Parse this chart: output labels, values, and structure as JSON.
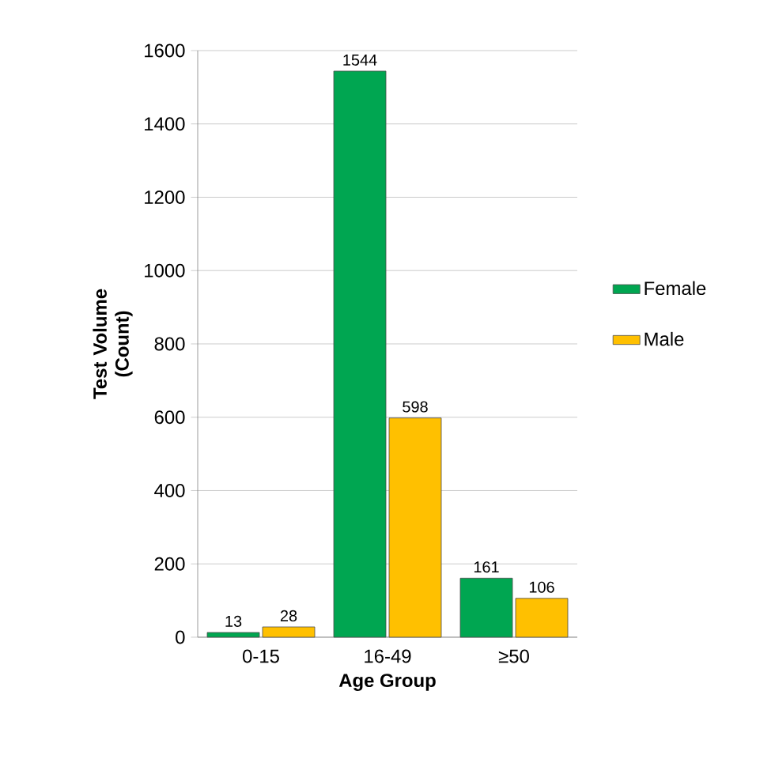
{
  "chart_data": {
    "type": "bar",
    "xlabel": "Age Group",
    "ylabel": "Test Volume (Count)",
    "categories": [
      "0-15",
      "16-49",
      "≥50"
    ],
    "series": [
      {
        "name": "Female",
        "color": "#00a651",
        "values": [
          13,
          1544,
          161
        ]
      },
      {
        "name": "Male",
        "color": "#ffc000",
        "values": [
          28,
          598,
          106
        ]
      }
    ],
    "ylim": [
      0,
      1600
    ],
    "yticks": [
      0,
      200,
      400,
      600,
      800,
      1000,
      1200,
      1400,
      1600
    ],
    "grid": "y",
    "legend": "right",
    "data_labels": true
  }
}
